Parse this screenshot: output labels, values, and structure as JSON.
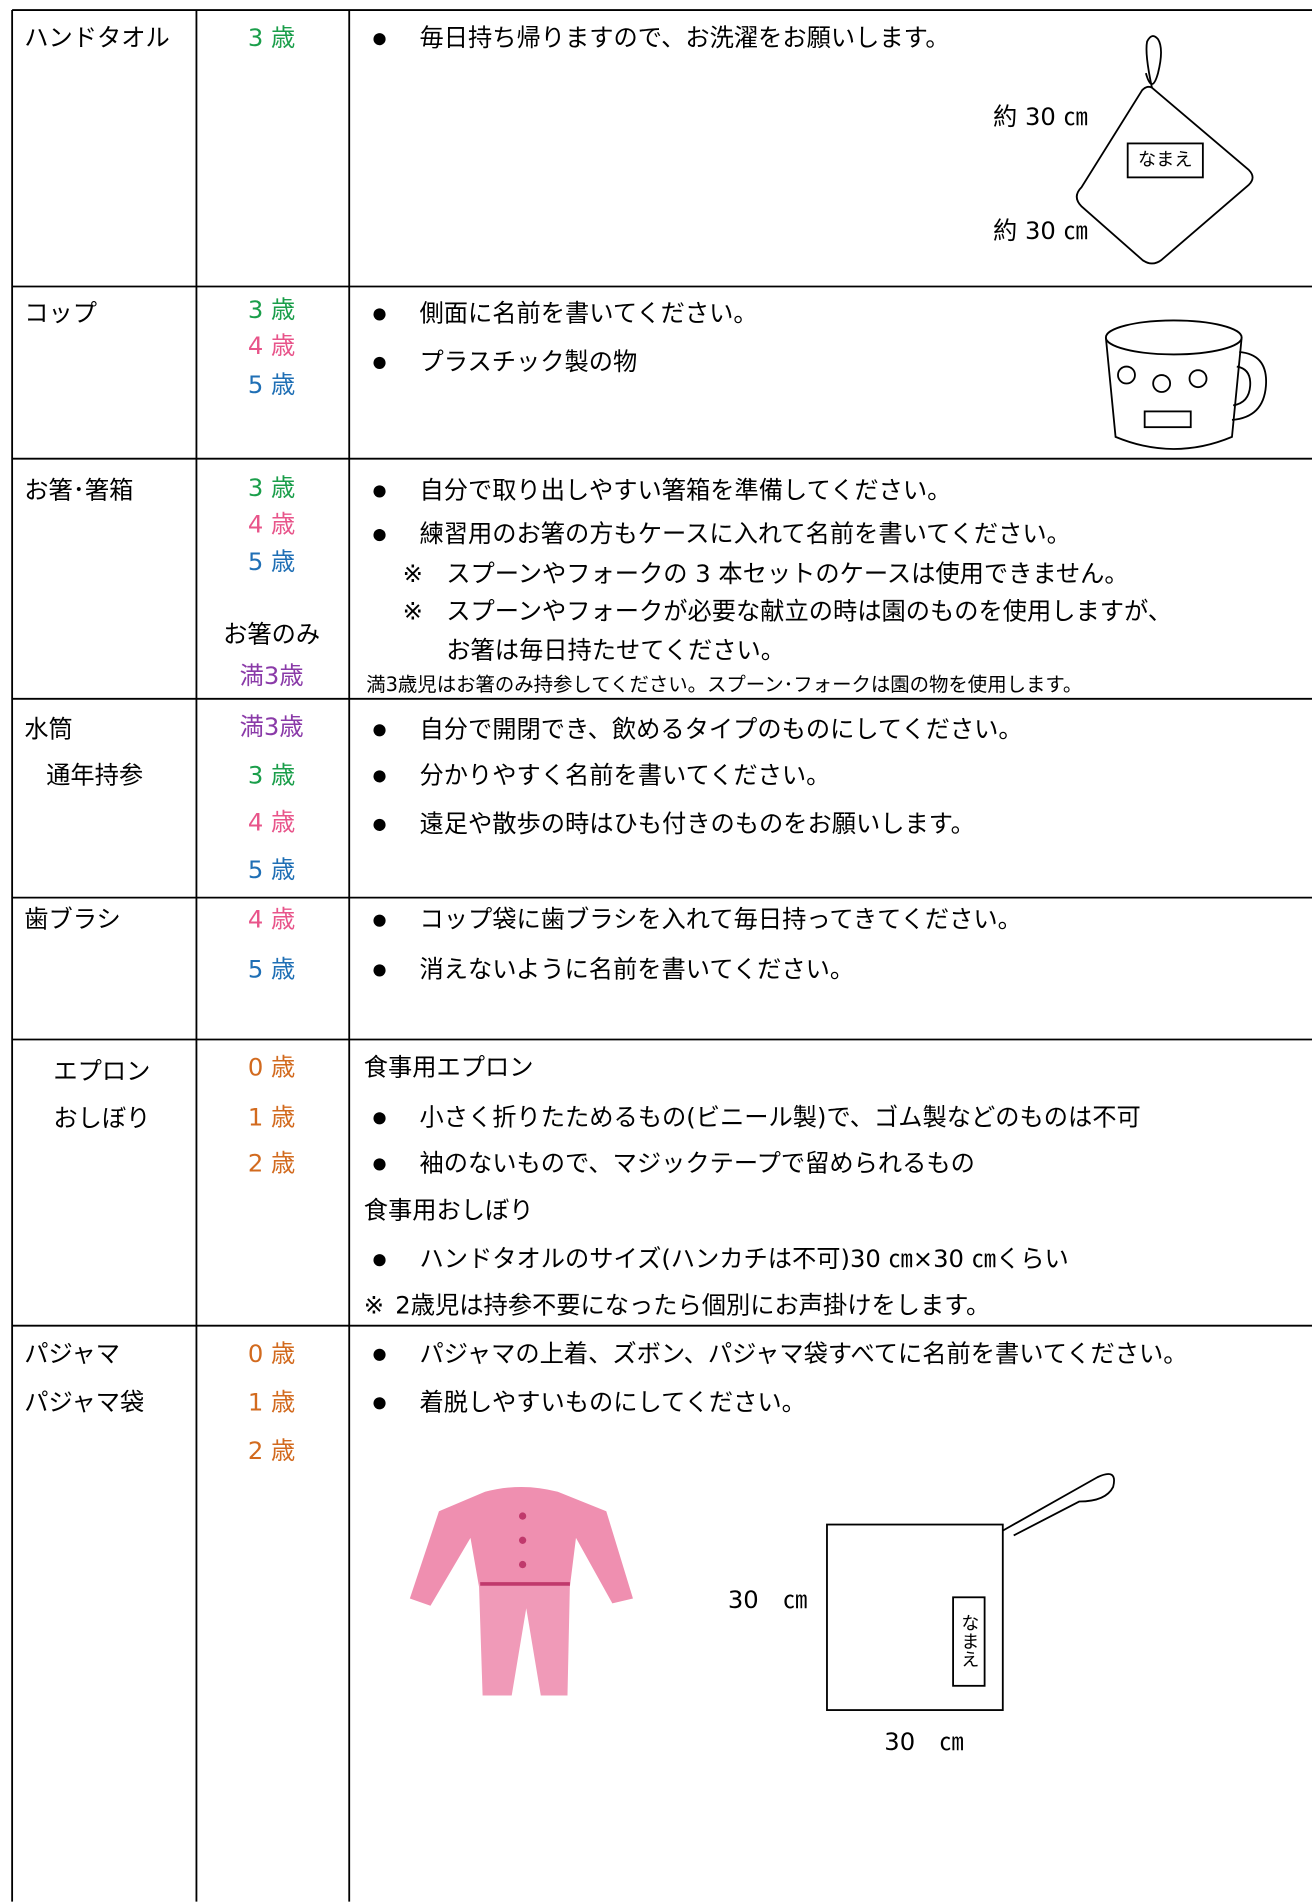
{
  "rows": [
    {
      "item": [
        "ハンドタオル"
      ],
      "ages": [
        {
          "text": "3 歳",
          "color": "#1a9e4a"
        }
      ],
      "content": [
        {
          "kind": "bullet",
          "text": "毎日持ち帰りますので、お洗濯をお願いします。"
        }
      ],
      "figure": {
        "labels": [
          "約 30 ㎝",
          "約 30 ㎝"
        ],
        "tag": "なまえ"
      }
    },
    {
      "item": [
        "コップ"
      ],
      "ages": [
        {
          "text": "3 歳",
          "color": "#1a9e4a"
        },
        {
          "text": "4 歳",
          "color": "#e8548a"
        },
        {
          "text": "5 歳",
          "color": "#1f6fb5"
        }
      ],
      "content": [
        {
          "kind": "bullet",
          "text": "側面に名前を書いてください。"
        },
        {
          "kind": "bullet",
          "text": "プラスチック製の物"
        }
      ]
    },
    {
      "item": [
        "お箸･箸箱"
      ],
      "ages": [
        {
          "text": "3 歳",
          "color": "#1a9e4a"
        },
        {
          "text": "4 歳",
          "color": "#e8548a"
        },
        {
          "text": "5 歳",
          "color": "#1f6fb5"
        },
        {
          "text": "お箸のみ",
          "color": "#000000"
        },
        {
          "text": "満3歳",
          "color": "#8a3aa8"
        }
      ],
      "content": [
        {
          "kind": "bullet",
          "text": "自分で取り出しやすい箸箱を準備してください。"
        },
        {
          "kind": "bullet",
          "text": "練習用のお箸の方もケースに入れて名前を書いてください。"
        },
        {
          "kind": "note",
          "mark": "※",
          "text": "スプーンやフォークの 3 本セットのケースは使用できません。"
        },
        {
          "kind": "note",
          "mark": "※",
          "text": "スプーンやフォークが必要な献立の時は園のものを使用しますが、"
        },
        {
          "kind": "cont",
          "text": "お箸は毎日持たせてください。"
        },
        {
          "kind": "small",
          "text": "満3歳児はお箸のみ持参してください。スプーン･フォークは園の物を使用します。"
        }
      ]
    },
    {
      "item": [
        "水筒",
        "通年持参"
      ],
      "ages": [
        {
          "text": "満3歳",
          "color": "#8a3aa8"
        },
        {
          "text": "3 歳",
          "color": "#1a9e4a"
        },
        {
          "text": "4 歳",
          "color": "#e8548a"
        },
        {
          "text": "5 歳",
          "color": "#1f6fb5"
        }
      ],
      "content": [
        {
          "kind": "bullet",
          "text": "自分で開閉でき、飲めるタイプのものにしてください。"
        },
        {
          "kind": "bullet",
          "text": "分かりやすく名前を書いてください。"
        },
        {
          "kind": "bullet",
          "text": "遠足や散歩の時はひも付きのものをお願いします。"
        }
      ]
    },
    {
      "item": [
        "歯ブラシ"
      ],
      "ages": [
        {
          "text": "4 歳",
          "color": "#e8548a"
        },
        {
          "text": "5 歳",
          "color": "#1f6fb5"
        }
      ],
      "content": [
        {
          "kind": "bullet",
          "text": "コップ袋に歯ブラシを入れて毎日持ってきてください。"
        },
        {
          "kind": "bullet",
          "text": "消えないように名前を書いてください。"
        }
      ]
    },
    {
      "item": [
        "エプロン",
        "おしぼり"
      ],
      "ages": [
        {
          "text": "0 歳",
          "color": "#d26a1e"
        },
        {
          "text": "1 歳",
          "color": "#d26a1e"
        },
        {
          "text": "2 歳",
          "color": "#d26a1e"
        }
      ],
      "content": [
        {
          "kind": "plain",
          "text": "食事用エプロン"
        },
        {
          "kind": "bullet",
          "text": "小さく折りたためるもの(ビニール製)で、ゴム製などのものは不可"
        },
        {
          "kind": "bullet",
          "text": "袖のないもので、マジックテープで留められるもの"
        },
        {
          "kind": "plain",
          "text": "食事用おしぼり"
        },
        {
          "kind": "bullet",
          "text": "ハンドタオルのサイズ(ハンカチは不可)30 ㎝×30 ㎝くらい"
        },
        {
          "kind": "note0",
          "mark": "※",
          "text": "2歳児は持参不要になったら個別にお声掛けをします。"
        }
      ]
    },
    {
      "item": [
        "パジャマ",
        "パジャマ袋"
      ],
      "ages": [
        {
          "text": "0 歳",
          "color": "#d26a1e"
        },
        {
          "text": "1 歳",
          "color": "#d26a1e"
        },
        {
          "text": "2 歳",
          "color": "#d26a1e"
        }
      ],
      "content": [
        {
          "kind": "bullet",
          "text": "パジャマの上着、ズボン、パジャマ袋すべてに名前を書いてください。"
        },
        {
          "kind": "bullet",
          "text": "着脱しやすいものにしてください。"
        }
      ],
      "figure": {
        "labels": [
          "30　㎝",
          "30　㎝"
        ],
        "tag": "なまえ"
      }
    }
  ]
}
